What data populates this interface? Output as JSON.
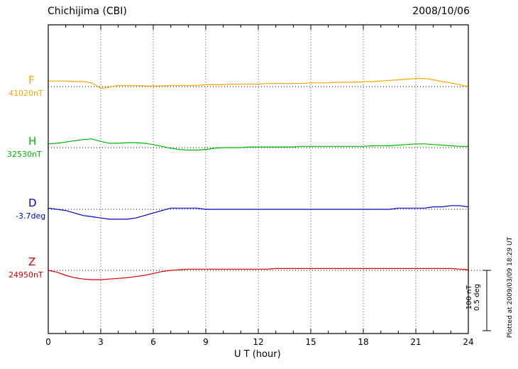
{
  "header": {
    "title": "Chichijima (CBI)",
    "date": "2008/10/06"
  },
  "x_axis": {
    "label": "U T (hour)",
    "major_ticks": [
      0,
      3,
      6,
      9,
      12,
      15,
      18,
      21,
      24
    ],
    "minor_step": 1,
    "range": [
      0,
      24
    ]
  },
  "scale_bar": {
    "nt_label": "100 nT",
    "deg_label": "0.5 deg"
  },
  "plotted_note": "Plotted at 2009/03/09 18:29 UT",
  "chart_data": {
    "type": "line",
    "title": "Chichijima (CBI) magnetogram 2008/10/06",
    "xlabel": "U T (hour)",
    "x_range": [
      0,
      24
    ],
    "x_step_hours": 0.5,
    "grid": "vertical dotted lines every 3 hours; dotted horizontal baseline per component",
    "legend_position": "left",
    "scale": {
      "bar_nT": 100,
      "bar_deg": 0.5
    },
    "series": [
      {
        "name": "F",
        "unit": "nT",
        "color": "#FFA500",
        "baseline_value": 41020,
        "baseline_label": "41020nT",
        "offsets_from_baseline": [
          9,
          9,
          9,
          8,
          8,
          6,
          -3,
          -1,
          2,
          2,
          2,
          1,
          1,
          1,
          2,
          2,
          2,
          2,
          3,
          3,
          3,
          4,
          4,
          4,
          4,
          5,
          5,
          5,
          5,
          5,
          6,
          6,
          6,
          7,
          7,
          7,
          8,
          8,
          9,
          10,
          11,
          12,
          13,
          13,
          11,
          8,
          6,
          3,
          0
        ]
      },
      {
        "name": "H",
        "unit": "nT",
        "color": "#00B800",
        "baseline_value": 32530,
        "baseline_label": "32530nT",
        "offsets_from_baseline": [
          6,
          7,
          9,
          11,
          13,
          14,
          10,
          7,
          7,
          8,
          8,
          7,
          5,
          2,
          -1,
          -3,
          -4,
          -4,
          -3,
          -1,
          0,
          0,
          0,
          1,
          1,
          1,
          1,
          1,
          1,
          2,
          2,
          2,
          2,
          2,
          2,
          2,
          2,
          3,
          3,
          3,
          4,
          5,
          6,
          6,
          5,
          4,
          3,
          2,
          2
        ]
      },
      {
        "name": "D",
        "unit": "deg",
        "color": "#0000CC",
        "baseline_value": -3.7,
        "baseline_label": "-3.7deg",
        "offsets_from_baseline": [
          0.01,
          0.0,
          -0.01,
          -0.03,
          -0.05,
          -0.06,
          -0.07,
          -0.08,
          -0.08,
          -0.08,
          -0.07,
          -0.05,
          -0.03,
          -0.01,
          0.01,
          0.01,
          0.01,
          0.01,
          0.0,
          0.0,
          0.0,
          0.0,
          0.0,
          0.0,
          0.0,
          0.0,
          0.0,
          0.0,
          0.0,
          0.0,
          0.0,
          0.0,
          0.0,
          0.0,
          0.0,
          0.0,
          0.0,
          0.0,
          0.0,
          0.0,
          0.01,
          0.01,
          0.01,
          0.01,
          0.02,
          0.02,
          0.03,
          0.03,
          0.02
        ]
      },
      {
        "name": "Z",
        "unit": "nT",
        "color": "#DD0000",
        "baseline_value": 24950,
        "baseline_label": "24950nT",
        "offsets_from_baseline": [
          0,
          -3,
          -8,
          -12,
          -14,
          -15,
          -15,
          -14,
          -13,
          -12,
          -10,
          -8,
          -5,
          -2,
          0,
          1,
          2,
          2,
          2,
          2,
          2,
          2,
          2,
          2,
          2,
          2,
          3,
          3,
          3,
          3,
          3,
          3,
          3,
          3,
          3,
          3,
          3,
          3,
          3,
          3,
          3,
          3,
          3,
          3,
          3,
          3,
          3,
          2,
          1
        ]
      }
    ]
  }
}
